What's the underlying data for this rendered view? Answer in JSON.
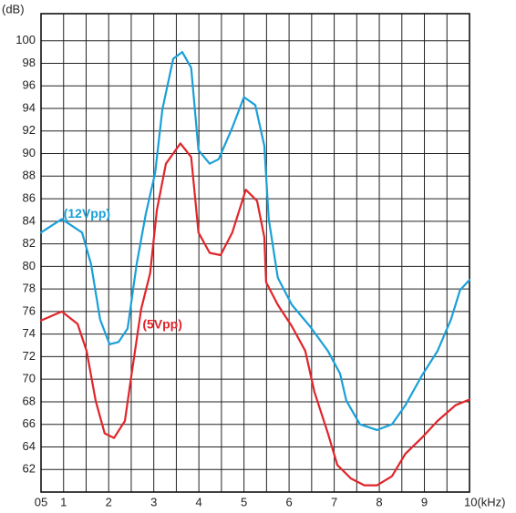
{
  "chart_data": {
    "type": "line",
    "y_label": "(dB)",
    "xlim": [
      0.5,
      10
    ],
    "ylim": [
      60,
      102.4
    ],
    "xticks": [
      {
        "value": 0.5,
        "label": "05"
      },
      1,
      2,
      3,
      4,
      5,
      6,
      7,
      8,
      9,
      {
        "value": 10,
        "label": "10(kHz)"
      }
    ],
    "xminor": [
      1.5,
      2.5,
      3.5,
      4.5,
      5.5,
      6.5,
      7.5,
      8.5,
      9.5
    ],
    "yticks": [
      62,
      64,
      66,
      68,
      70,
      72,
      74,
      76,
      78,
      80,
      82,
      84,
      86,
      88,
      90,
      92,
      94,
      96,
      98,
      100
    ],
    "grid": true,
    "series": [
      {
        "name": "(12Vpp)",
        "color": "#1aa0d8",
        "x": [
          0.5,
          0.96,
          1.41,
          1.61,
          1.81,
          2.02,
          2.22,
          2.42,
          2.62,
          2.82,
          3.03,
          3.19,
          3.43,
          3.63,
          3.83,
          3.99,
          4.24,
          4.44,
          4.74,
          5.0,
          5.25,
          5.45,
          5.55,
          5.75,
          6.06,
          6.46,
          6.86,
          7.13,
          7.27,
          7.57,
          7.95,
          8.28,
          8.58,
          8.94,
          9.29,
          9.59,
          9.79,
          10
        ],
        "values": [
          83.0,
          84.2,
          83.0,
          80.2,
          75.3,
          73.1,
          73.3,
          74.5,
          80.2,
          84.6,
          88.3,
          93.9,
          98.4,
          99.0,
          97.6,
          90.3,
          89.1,
          89.5,
          92.3,
          95.0,
          94.3,
          90.7,
          84.2,
          79.0,
          76.6,
          74.7,
          72.5,
          70.5,
          68.1,
          66.0,
          65.5,
          66.0,
          67.7,
          70.3,
          72.5,
          75.3,
          77.9,
          78.8
        ]
      },
      {
        "name": "(5Vpp)",
        "color": "#e0252a",
        "x": [
          0.5,
          0.96,
          1.31,
          1.51,
          1.71,
          1.91,
          2.12,
          2.36,
          2.48,
          2.72,
          2.92,
          3.07,
          3.27,
          3.59,
          3.83,
          3.99,
          4.24,
          4.48,
          4.74,
          5.04,
          5.29,
          5.45,
          5.49,
          5.75,
          6.06,
          6.36,
          6.56,
          6.86,
          7.07,
          7.37,
          7.67,
          7.95,
          8.28,
          8.58,
          8.94,
          9.29,
          9.69,
          10
        ],
        "values": [
          75.2,
          76.0,
          74.9,
          72.5,
          68.1,
          65.2,
          64.8,
          66.3,
          69.7,
          76.2,
          79.4,
          85.0,
          89.1,
          90.9,
          89.7,
          83.0,
          81.2,
          81.0,
          83.0,
          86.8,
          85.8,
          82.6,
          78.6,
          76.6,
          74.7,
          72.5,
          68.9,
          65.2,
          62.4,
          61.2,
          60.6,
          60.6,
          61.4,
          63.4,
          64.8,
          66.3,
          67.7,
          68.2
        ]
      }
    ]
  }
}
